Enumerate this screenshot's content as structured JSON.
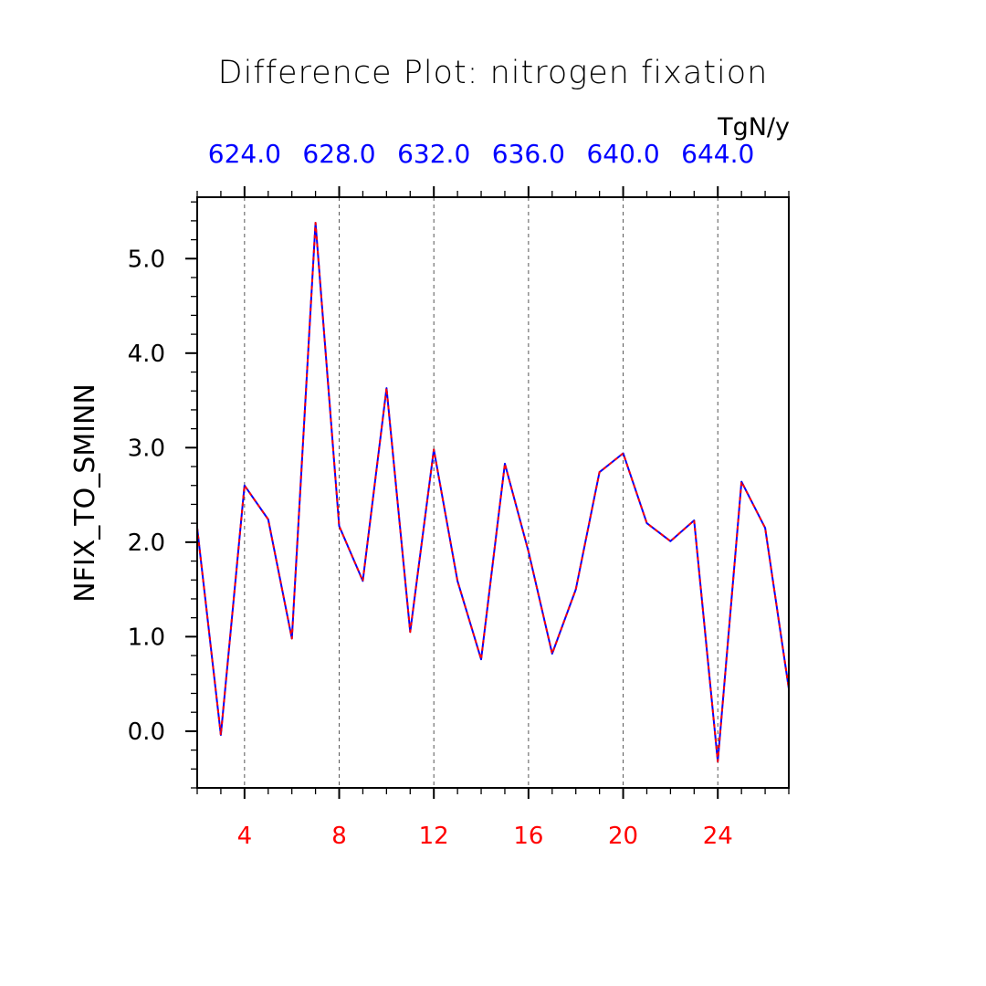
{
  "chart_data": {
    "type": "line",
    "title": "Difference Plot: nitrogen fixation",
    "units": "TgN/y",
    "ylabel": "NFIX_TO_SMINN",
    "xlabel": "",
    "xlim": [
      2,
      27
    ],
    "ylim": [
      -0.6,
      5.65
    ],
    "y_ticks": [
      0.0,
      1.0,
      2.0,
      3.0,
      4.0,
      5.0
    ],
    "y_tick_labels": [
      "0.0",
      "1.0",
      "2.0",
      "3.0",
      "4.0",
      "5.0"
    ],
    "x_bottom_ticks": [
      4,
      8,
      12,
      16,
      20,
      24
    ],
    "x_bottom_tick_labels": [
      "4",
      "8",
      "12",
      "16",
      "20",
      "24"
    ],
    "x_top_tick_labels": [
      "624.0",
      "628.0",
      "632.0",
      "636.0",
      "640.0",
      "644.0"
    ],
    "grid_vertical": "dashed",
    "series": [
      {
        "name": "blue-solid",
        "color": "#0000ff",
        "style": "solid",
        "x": [
          2,
          3,
          4,
          5,
          6,
          7,
          8,
          9,
          10,
          11,
          12,
          13,
          14,
          15,
          16,
          17,
          18,
          19,
          20,
          21,
          22,
          23,
          24,
          25,
          26,
          27
        ],
        "values": [
          2.15,
          -0.04,
          2.6,
          2.24,
          0.98,
          5.38,
          2.17,
          1.59,
          3.63,
          1.05,
          2.98,
          1.59,
          0.76,
          2.83,
          1.9,
          0.82,
          1.5,
          2.74,
          2.94,
          2.2,
          2.01,
          2.23,
          -0.32,
          2.64,
          2.15,
          0.45
        ]
      },
      {
        "name": "red-dashed",
        "color": "#ff0000",
        "style": "dashed",
        "x": [
          2,
          3,
          4,
          5,
          6,
          7,
          8,
          9,
          10,
          11,
          12,
          13,
          14,
          15,
          16,
          17,
          18,
          19,
          20,
          21,
          22,
          23,
          24,
          25,
          26,
          27
        ],
        "values": [
          2.15,
          -0.04,
          2.6,
          2.24,
          0.98,
          5.38,
          2.17,
          1.59,
          3.63,
          1.05,
          2.98,
          1.59,
          0.76,
          2.83,
          1.9,
          0.82,
          1.5,
          2.74,
          2.94,
          2.2,
          2.01,
          2.23,
          -0.32,
          2.64,
          2.15,
          0.45
        ]
      }
    ],
    "colors": {
      "top_axis_labels": "#0000ff",
      "bottom_axis_labels": "#ff0000",
      "axes": "#000000",
      "grid": "#555555"
    }
  }
}
